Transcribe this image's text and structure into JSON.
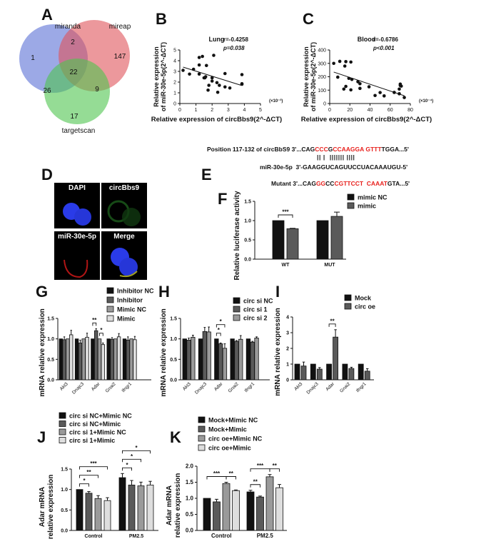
{
  "panel_labels": {
    "A": "A",
    "B": "B",
    "C": "C",
    "D": "D",
    "E": "E",
    "F": "F",
    "G": "G",
    "H": "H",
    "I": "I",
    "J": "J",
    "K": "K"
  },
  "panel_d": {
    "labels": [
      "DAPI",
      "circBbs9",
      "miR-30e-5p",
      "Merge"
    ]
  },
  "panel_e": {
    "line1_prefix": "Position 117-132 of circBbS9 3'...CAG",
    "line1_segments": [
      [
        "CCC",
        "r"
      ],
      [
        "G",
        "k"
      ],
      [
        "C",
        "r"
      ],
      [
        "CAAGGA",
        "r"
      ],
      [
        " ",
        "k"
      ],
      [
        "GTTT",
        "r"
      ],
      [
        "TGGA...5'",
        "k"
      ]
    ],
    "pairing": "|| |  ||||||| ||||",
    "line2": "miR-30e-5p  3'-GAAGGUCAGUUCCUACAAAUGU-5'",
    "line3_prefix": "Mutant 3'...CAG",
    "line3_segments": [
      [
        "GG",
        "r"
      ],
      [
        "CC",
        "k"
      ],
      [
        "C",
        "r"
      ],
      [
        "GTTCCT",
        "r"
      ],
      [
        "  ",
        "k"
      ],
      [
        "CAAAT",
        "r"
      ],
      [
        "GTA...5'",
        "k"
      ]
    ]
  },
  "colors": {
    "black": "#111111",
    "dark": "#5a5a5a",
    "mid": "#9a9a9a",
    "light": "#dedede",
    "blue": "#5a6fd6",
    "red": "#e0545a",
    "green": "#4fc44f"
  },
  "chart_data": [
    {
      "id": "A",
      "type": "venn",
      "sets": [
        "miranda",
        "mireap",
        "targetscan"
      ],
      "regions": {
        "miranda_only": 1,
        "mireap_only": 147,
        "targetscan_only": 17,
        "miranda_mireap": 2,
        "miranda_targetscan": 26,
        "mireap_targetscan": 9,
        "all": 22
      }
    },
    {
      "id": "B",
      "type": "scatter",
      "title": "Lung",
      "r_text": "r=-0.4258",
      "p_text": "p=0.038",
      "xlabel": "Relative expression of circBbs9(2^-ΔCT)",
      "ylabel": [
        "Relative expression",
        "of miR-30e-5p(2^-ΔCT)"
      ],
      "x_scale": "(×10⁻³)",
      "xlim": [
        0,
        5
      ],
      "ylim": [
        0,
        5
      ],
      "xticks": [
        0,
        1,
        2,
        3,
        4,
        5
      ],
      "yticks": [
        0,
        1,
        2,
        3,
        4,
        5
      ],
      "points": [
        [
          0.2,
          3.1
        ],
        [
          0.6,
          2.75
        ],
        [
          0.85,
          3.2
        ],
        [
          1.2,
          4.3
        ],
        [
          1.2,
          3.6
        ],
        [
          1.2,
          2.75
        ],
        [
          1.4,
          4.4
        ],
        [
          1.5,
          2.4
        ],
        [
          1.55,
          2.4
        ],
        [
          1.6,
          2.5
        ],
        [
          1.65,
          3.55
        ],
        [
          1.75,
          1.25
        ],
        [
          1.8,
          1.7
        ],
        [
          2.0,
          2.4
        ],
        [
          2.0,
          2.1
        ],
        [
          2.1,
          4.5
        ],
        [
          2.3,
          1.95
        ],
        [
          2.35,
          1.05
        ],
        [
          2.45,
          1.7
        ],
        [
          2.8,
          2.8
        ],
        [
          2.8,
          1.55
        ],
        [
          3.1,
          1.45
        ],
        [
          3.85,
          2.7
        ],
        [
          3.85,
          1.85
        ],
        [
          3.85,
          1.8
        ]
      ],
      "fit": [
        [
          0.2,
          3.4
        ],
        [
          3.8,
          1.7
        ]
      ]
    },
    {
      "id": "C",
      "type": "scatter",
      "title": "Blood",
      "r_text": "r=-0.6786",
      "p_text": "p<0.001",
      "xlabel": "Relative expression of circBbs9(2^-ΔCT)",
      "ylabel": [
        "Relative expression",
        "of miR-30e-5p(2^-ΔCT)"
      ],
      "x_scale": "(×10⁻⁴)",
      "xlim": [
        0,
        80
      ],
      "ylim": [
        0,
        400
      ],
      "xticks": [
        0,
        20,
        40,
        60,
        80
      ],
      "yticks": [
        0,
        100,
        200,
        300,
        400
      ],
      "points": [
        [
          4,
          300
        ],
        [
          8,
          197
        ],
        [
          10,
          315
        ],
        [
          14,
          108
        ],
        [
          15,
          280
        ],
        [
          16,
          128
        ],
        [
          16,
          313
        ],
        [
          19,
          188
        ],
        [
          21,
          310
        ],
        [
          21,
          102
        ],
        [
          22,
          180
        ],
        [
          28,
          163
        ],
        [
          30,
          148
        ],
        [
          30,
          113
        ],
        [
          39,
          125
        ],
        [
          45,
          60
        ],
        [
          50,
          82
        ],
        [
          54,
          57
        ],
        [
          64,
          83
        ],
        [
          69,
          108
        ],
        [
          69,
          73
        ],
        [
          70,
          145
        ],
        [
          70,
          135
        ],
        [
          71,
          130
        ],
        [
          74,
          45
        ]
      ],
      "fit": [
        [
          4,
          235
        ],
        [
          74,
          58
        ]
      ]
    },
    {
      "id": "F",
      "type": "bar",
      "categories": [
        "WT",
        "MUT"
      ],
      "ylabel": "Relative luciferase activity",
      "ylim": [
        0,
        1.5
      ],
      "yticks": [
        "0.0",
        "0.5",
        "1.0",
        "1.5"
      ],
      "series": [
        {
          "name": "mimic NC",
          "values": [
            1.0,
            1.0
          ],
          "err": [
            0,
            0
          ]
        },
        {
          "name": "mimic",
          "values": [
            0.79,
            1.11
          ],
          "err": [
            0.01,
            0.11
          ]
        }
      ],
      "significance": [
        {
          "group": 0,
          "from": 0,
          "to": 1,
          "label": "***"
        }
      ]
    },
    {
      "id": "G",
      "type": "bar",
      "categories": [
        "Akt3",
        "Dnajc3",
        "Adar",
        "Gnai2",
        "Ifngr1"
      ],
      "ylabel": "mRNA relative expression",
      "ylim": [
        0,
        1.5
      ],
      "yticks": [
        "0.0",
        "0.5",
        "1.0",
        "1.5"
      ],
      "series": [
        {
          "name": "Inhibitor NC",
          "values": [
            1,
            1,
            1,
            1,
            1
          ],
          "err": [
            0,
            0,
            0,
            0,
            0
          ]
        },
        {
          "name": "Inhibitor",
          "values": [
            0.98,
            0.9,
            1.2,
            0.99,
            0.97
          ],
          "err": [
            0.07,
            0.07,
            0.05,
            0.04,
            0.08
          ]
        },
        {
          "name": "Mimic NC",
          "values": [
            1,
            1,
            1,
            1,
            1
          ],
          "err": [
            0,
            0,
            0,
            0,
            0
          ]
        },
        {
          "name": "Mimic",
          "values": [
            1.1,
            1.04,
            0.86,
            1.05,
            0.98
          ],
          "err": [
            0.11,
            0.1,
            0.04,
            0.08,
            0.08
          ]
        }
      ],
      "significance": [
        {
          "group": 2,
          "from": 0,
          "to": 1,
          "label": "**"
        },
        {
          "group": 2,
          "from": 2,
          "to": 3,
          "label": "*"
        }
      ]
    },
    {
      "id": "H",
      "type": "bar",
      "categories": [
        "Akt3",
        "Dnajc3",
        "Adar",
        "Gnai2",
        "Ifngr1"
      ],
      "ylabel": "mRNA relative expression",
      "ylim": [
        0,
        1.5
      ],
      "yticks": [
        "0.0",
        "0.5",
        "1.0",
        "1.5"
      ],
      "series": [
        {
          "name": "circ si NC",
          "values": [
            1,
            1,
            1,
            1,
            1
          ],
          "err": [
            0,
            0,
            0,
            0,
            0
          ]
        },
        {
          "name": "circ si 1",
          "values": [
            0.97,
            1.18,
            0.88,
            0.94,
            0.92
          ],
          "err": [
            0.05,
            0.1,
            0.02,
            0.02,
            0.02
          ]
        },
        {
          "name": "circ si 2",
          "values": [
            1.04,
            1.17,
            0.77,
            0.99,
            1.02
          ],
          "err": [
            0.05,
            0.12,
            0.11,
            0.09,
            0.03
          ]
        }
      ],
      "significance": [
        {
          "group": 2,
          "from": 0,
          "to": 1,
          "label": "*"
        },
        {
          "group": 2,
          "from": 0,
          "to": 2,
          "label": "*"
        }
      ]
    },
    {
      "id": "I",
      "type": "bar",
      "categories": [
        "Akt3",
        "Dnajc3",
        "Adar",
        "Gnai2",
        "Ifngr1"
      ],
      "ylabel": "mRNA relative expression",
      "ylim": [
        0,
        4
      ],
      "yticks": [
        "0",
        "1",
        "2",
        "3",
        "4"
      ],
      "series": [
        {
          "name": "Mock",
          "values": [
            1,
            1,
            1,
            1,
            1
          ],
          "err": [
            0,
            0,
            0,
            0,
            0
          ]
        },
        {
          "name": "circ oe",
          "values": [
            0.88,
            0.68,
            2.72,
            0.72,
            0.55
          ],
          "err": [
            0.25,
            0.1,
            0.47,
            0.08,
            0.16
          ]
        }
      ],
      "significance": [
        {
          "group": 2,
          "from": 0,
          "to": 1,
          "label": "**"
        }
      ]
    },
    {
      "id": "J",
      "type": "bar",
      "categories": [
        "Control",
        "PM2.5"
      ],
      "ylabel": [
        "Adar mRNA",
        "relative expression"
      ],
      "ylim": [
        0,
        1.5
      ],
      "yticks": [
        "0.0",
        "0.5",
        "1.0",
        "1.5"
      ],
      "series": [
        {
          "name": "circ si NC+Mimic NC",
          "values": [
            1.0,
            1.29
          ],
          "err": [
            0,
            0.1
          ]
        },
        {
          "name": "circ si NC+Mimic",
          "values": [
            0.91,
            1.11
          ],
          "err": [
            0.04,
            0.11
          ]
        },
        {
          "name": "circ si 1+Mimic NC",
          "values": [
            0.78,
            1.09
          ],
          "err": [
            0.07,
            0.09
          ]
        },
        {
          "name": "circ si 1+Mimic",
          "values": [
            0.73,
            1.11
          ],
          "err": [
            0.07,
            0.09
          ]
        }
      ],
      "significance": [
        {
          "group": 0,
          "from": 0,
          "to": 1,
          "label": "*"
        },
        {
          "group": 0,
          "from": 0,
          "to": 2,
          "label": "**"
        },
        {
          "group": 0,
          "from": 0,
          "to": 3,
          "label": "***"
        },
        {
          "group": 1,
          "from": 0,
          "to": 1,
          "label": "*"
        },
        {
          "group": 1,
          "from": 0,
          "to": 2,
          "label": "*"
        },
        {
          "group": 1,
          "from": 0,
          "to": 3,
          "label": "*"
        }
      ]
    },
    {
      "id": "K",
      "type": "bar",
      "categories": [
        "Control",
        "PM2.5"
      ],
      "ylabel": [
        "Adar mRNA",
        "relative expression"
      ],
      "ylim": [
        0,
        2
      ],
      "yticks": [
        "0.0",
        "0.5",
        "1.0",
        "1.5",
        "2.0"
      ],
      "series": [
        {
          "name": "Mock+Mimic NC",
          "values": [
            1.0,
            1.2
          ],
          "err": [
            0,
            0.05
          ]
        },
        {
          "name": "Mock+Mimic",
          "values": [
            0.89,
            1.04
          ],
          "err": [
            0.08,
            0.03
          ]
        },
        {
          "name": "circ oe+Mimic NC",
          "values": [
            1.46,
            1.67
          ],
          "err": [
            0.04,
            0.07
          ]
        },
        {
          "name": "circ oe+Mimic",
          "values": [
            1.24,
            1.33
          ],
          "err": [
            0.02,
            0.1
          ]
        }
      ],
      "significance": [
        {
          "group": 0,
          "from": 0,
          "to": 2,
          "label": "***"
        },
        {
          "group": 0,
          "from": 2,
          "to": 3,
          "label": "**"
        },
        {
          "group": 1,
          "from": 0,
          "to": 1,
          "label": "**"
        },
        {
          "group": 1,
          "from": 0,
          "to": 2,
          "label": "***"
        },
        {
          "group": 1,
          "from": 2,
          "to": 3,
          "label": "**"
        }
      ]
    }
  ]
}
